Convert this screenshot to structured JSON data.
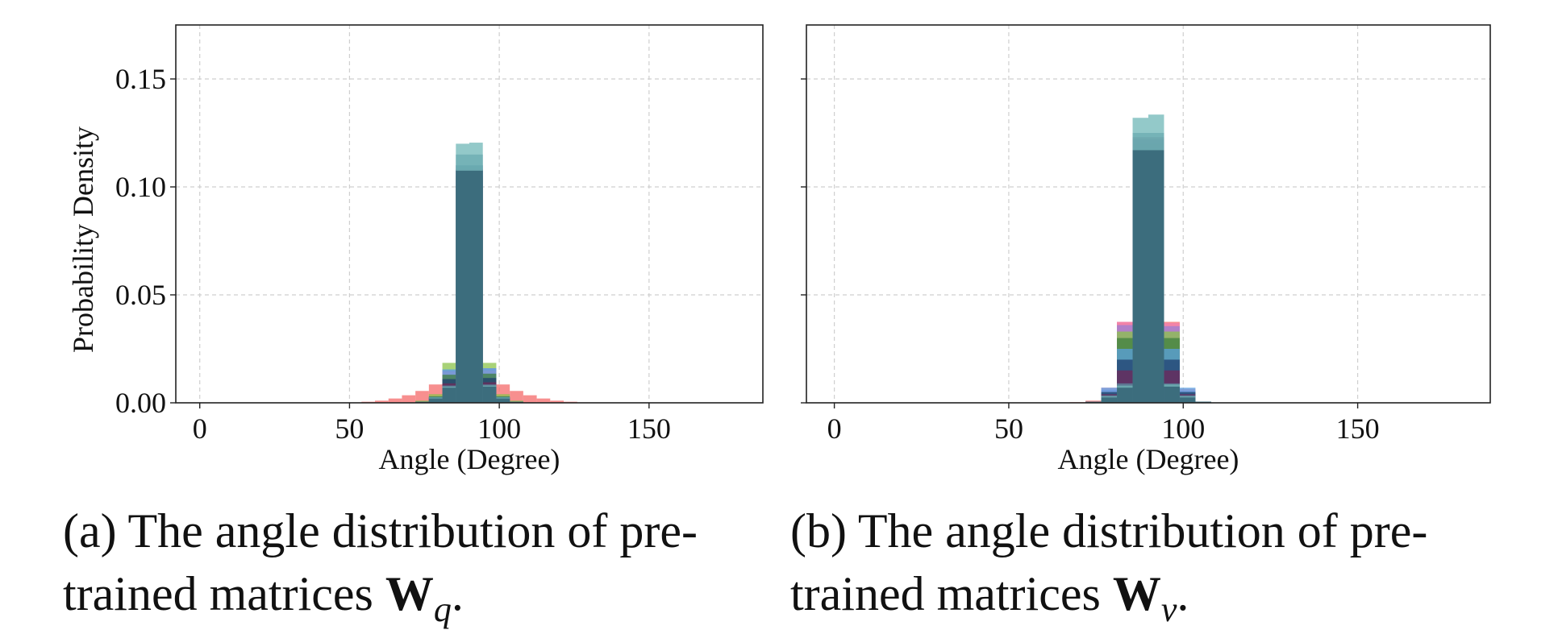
{
  "chart_data": [
    {
      "type": "bar",
      "subplot": "a",
      "xlabel": "Angle (Degree)",
      "ylabel": "Probability Density",
      "xlim": [
        -8,
        188
      ],
      "ylim": [
        0,
        0.175
      ],
      "xticks": [
        0,
        50,
        100,
        150
      ],
      "yticks": [
        0,
        0.05,
        0.1,
        0.15
      ],
      "ytick_labels": [
        "0.00",
        "0.05",
        "0.10",
        "0.15"
      ],
      "show_ytick_labels": true,
      "grid": true,
      "bin_width": 4.5,
      "bin_centers": [
        56.25,
        60.75,
        65.25,
        69.75,
        74.25,
        78.75,
        83.25,
        87.75,
        92.25,
        96.75,
        101.25,
        105.75,
        110.25,
        114.75,
        119.25,
        123.75,
        128.25
      ],
      "series": [
        {
          "color": "#f46a6a",
          "values": [
            0.0005,
            0.001,
            0.002,
            0.0035,
            0.0055,
            0.0085,
            0.014,
            0.098,
            0.098,
            0.013,
            0.0085,
            0.0055,
            0.0035,
            0.002,
            0.001,
            0.0005,
            0.0002
          ]
        },
        {
          "color": "#8bc34a",
          "values": [
            0,
            0,
            0,
            0,
            0.001,
            0.004,
            0.0185,
            0.1,
            0.1,
            0.0185,
            0.004,
            0.001,
            0,
            0,
            0,
            0,
            0
          ]
        },
        {
          "color": "#9b7fd4",
          "values": [
            0,
            0,
            0,
            0,
            0.0005,
            0.0025,
            0.015,
            0.103,
            0.103,
            0.016,
            0.0025,
            0.0005,
            0,
            0,
            0,
            0,
            0
          ]
        },
        {
          "color": "#f07fb0",
          "values": [
            0,
            0,
            0,
            0,
            0.0005,
            0.0025,
            0.0145,
            0.104,
            0.104,
            0.015,
            0.0025,
            0.0005,
            0,
            0,
            0,
            0,
            0
          ]
        },
        {
          "color": "#5aa0e0",
          "values": [
            0,
            0,
            0,
            0,
            0.0005,
            0.003,
            0.0155,
            0.108,
            0.108,
            0.016,
            0.003,
            0.0005,
            0,
            0,
            0,
            0,
            0
          ]
        },
        {
          "color": "#3f7f3f",
          "values": [
            0,
            0,
            0,
            0,
            0.0005,
            0.003,
            0.013,
            0.105,
            0.105,
            0.0135,
            0.003,
            0.0005,
            0,
            0,
            0,
            0,
            0
          ]
        },
        {
          "color": "#1f3f6f",
          "values": [
            0,
            0,
            0,
            0,
            0.0005,
            0.0025,
            0.011,
            0.11,
            0.11,
            0.0115,
            0.0025,
            0.0005,
            0,
            0,
            0,
            0,
            0
          ]
        },
        {
          "color": "#6f2a5a",
          "values": [
            0,
            0,
            0,
            0,
            0.0005,
            0.002,
            0.009,
            0.108,
            0.108,
            0.0095,
            0.002,
            0.0005,
            0,
            0,
            0,
            0,
            0
          ]
        },
        {
          "color": "#5e8ba0",
          "values": [
            0,
            0,
            0,
            0,
            0.0005,
            0.0025,
            0.008,
            0.115,
            0.115,
            0.0085,
            0.0025,
            0.0005,
            0,
            0,
            0,
            0,
            0
          ]
        },
        {
          "color": "#6fb7b7",
          "values": [
            0,
            0,
            0,
            0,
            0.0005,
            0.0025,
            0.0075,
            0.12,
            0.1205,
            0.008,
            0.0025,
            0.0005,
            0,
            0,
            0,
            0,
            0
          ]
        },
        {
          "color": "#2e5a6e",
          "values": [
            0,
            0,
            0,
            0,
            0.0005,
            0.002,
            0.007,
            0.1075,
            0.1075,
            0.0075,
            0.002,
            0.0005,
            0,
            0,
            0,
            0,
            0
          ]
        }
      ]
    },
    {
      "type": "bar",
      "subplot": "b",
      "xlabel": "Angle (Degree)",
      "ylabel": "",
      "xlim": [
        -8,
        188
      ],
      "ylim": [
        0,
        0.175
      ],
      "xticks": [
        0,
        50,
        100,
        150
      ],
      "yticks": [
        0,
        0.05,
        0.1,
        0.15
      ],
      "ytick_labels": [
        "",
        "",
        "",
        ""
      ],
      "show_ytick_labels": false,
      "grid": true,
      "bin_width": 4.5,
      "bin_centers": [
        69.75,
        74.25,
        78.75,
        83.25,
        87.75,
        92.25,
        96.75,
        101.25,
        105.75
      ],
      "series": [
        {
          "color": "#f46a6a",
          "values": [
            0.0003,
            0.001,
            0.0035,
            0.0375,
            0.11,
            0.11,
            0.0375,
            0.0035,
            0.0005
          ]
        },
        {
          "color": "#f07fb0",
          "values": [
            0,
            0.0005,
            0.007,
            0.0375,
            0.115,
            0.115,
            0.037,
            0.0065,
            0.0005
          ]
        },
        {
          "color": "#9b7fd4",
          "values": [
            0,
            0.0005,
            0.006,
            0.036,
            0.118,
            0.118,
            0.0355,
            0.0055,
            0.0005
          ]
        },
        {
          "color": "#8bc34a",
          "values": [
            0,
            0.0005,
            0.005,
            0.033,
            0.116,
            0.116,
            0.033,
            0.005,
            0.0005
          ]
        },
        {
          "color": "#3f7f3f",
          "values": [
            0,
            0.0005,
            0.0045,
            0.03,
            0.117,
            0.117,
            0.03,
            0.0045,
            0.0005
          ]
        },
        {
          "color": "#5aa0e0",
          "values": [
            0,
            0.0005,
            0.007,
            0.025,
            0.12,
            0.12,
            0.025,
            0.007,
            0.0005
          ]
        },
        {
          "color": "#1f3f6f",
          "values": [
            0,
            0.0005,
            0.005,
            0.02,
            0.122,
            0.122,
            0.02,
            0.005,
            0.0005
          ]
        },
        {
          "color": "#6f2a5a",
          "values": [
            0,
            0.0005,
            0.004,
            0.015,
            0.123,
            0.123,
            0.015,
            0.004,
            0.0005
          ]
        },
        {
          "color": "#5e8ba0",
          "values": [
            0,
            0.0005,
            0.0035,
            0.009,
            0.125,
            0.125,
            0.009,
            0.0035,
            0.0005
          ]
        },
        {
          "color": "#6fb7b7",
          "values": [
            0,
            0.0005,
            0.003,
            0.008,
            0.132,
            0.1335,
            0.0085,
            0.003,
            0.0005
          ]
        },
        {
          "color": "#2e5a6e",
          "values": [
            0,
            0.0005,
            0.0025,
            0.007,
            0.117,
            0.117,
            0.0075,
            0.0025,
            0.0005
          ]
        }
      ]
    }
  ],
  "captions": [
    {
      "line1": "(a) The angle distribution of pre-",
      "line2": "trained matrices ",
      "math_symbol": "W",
      "math_subscript": "q",
      "tail": "."
    },
    {
      "line1": "(b) The angle distribution of pre-",
      "line2": "trained matrices ",
      "math_symbol": "W",
      "math_subscript": "v",
      "tail": "."
    }
  ]
}
